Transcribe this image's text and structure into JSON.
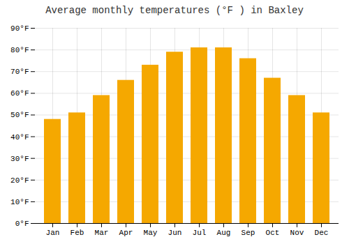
{
  "chart_data": {
    "type": "bar",
    "title": "Average monthly temperatures (°F ) in Baxley",
    "categories": [
      "Jan",
      "Feb",
      "Mar",
      "Apr",
      "May",
      "Jun",
      "Jul",
      "Aug",
      "Sep",
      "Oct",
      "Nov",
      "Dec"
    ],
    "values": [
      48,
      51,
      59,
      66,
      73,
      79,
      81,
      81,
      76,
      67,
      59,
      51
    ],
    "color": "#F5A800",
    "ylim": [
      0,
      90
    ],
    "yticks": [
      {
        "value": 0,
        "label": "0°F"
      },
      {
        "value": 10,
        "label": "10°F"
      },
      {
        "value": 20,
        "label": "20°F"
      },
      {
        "value": 30,
        "label": "30°F"
      },
      {
        "value": 40,
        "label": "40°F"
      },
      {
        "value": 50,
        "label": "50°F"
      },
      {
        "value": 60,
        "label": "60°F"
      },
      {
        "value": 70,
        "label": "70°F"
      },
      {
        "value": 80,
        "label": "80°F"
      },
      {
        "value": 90,
        "label": "90°F"
      }
    ],
    "grid": true
  }
}
